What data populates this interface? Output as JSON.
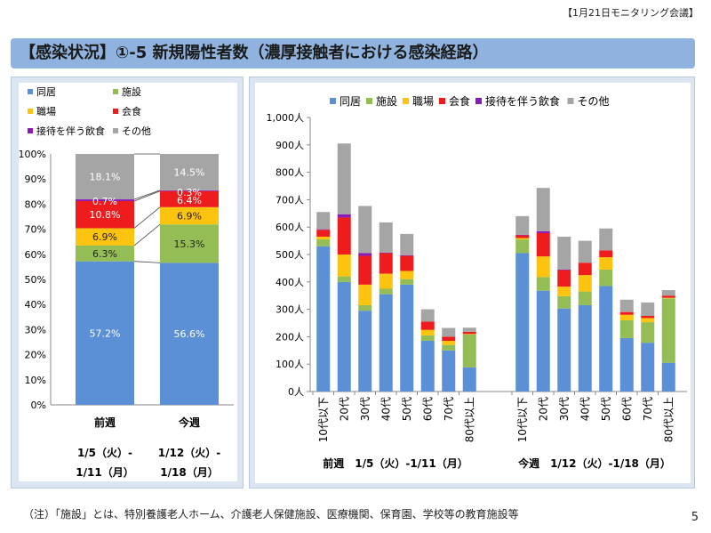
{
  "header": {
    "meeting": "【1月21日モニタリング会議】",
    "title": "【感染状況】①-5 新規陽性者数（濃厚接触者における感染経路）"
  },
  "footer": {
    "note": "（注）「施設」とは、特別養護老人ホーム、介護老人保健施設、医療機関、保育園、学校等の教育施設等",
    "page": "5"
  },
  "colors": {
    "同居": "#5b8fd6",
    "施設": "#94be55",
    "職場": "#fcc30f",
    "会食": "#ee1c1c",
    "接待を伴う飲食": "#8b1bb7",
    "その他": "#a5a5a5"
  },
  "chart_data": [
    {
      "type": "bar",
      "stacked": "percent",
      "categories": [
        "前週",
        "今週"
      ],
      "category_dates": [
        "1/5（火）-\n1/11（月）",
        "1/12（火）-\n1/18（月）"
      ],
      "ylim": [
        0,
        100
      ],
      "yticks": [
        "0%",
        "10%",
        "20%",
        "30%",
        "40%",
        "50%",
        "60%",
        "70%",
        "80%",
        "90%",
        "100%"
      ],
      "legend": [
        "同居",
        "施設",
        "職場",
        "会食",
        "接待を伴う飲食",
        "その他"
      ],
      "series": [
        {
          "name": "同居",
          "values": [
            57.2,
            56.6
          ],
          "labels": [
            "57.2%",
            "56.6%"
          ]
        },
        {
          "name": "施設",
          "values": [
            6.3,
            15.3
          ],
          "labels": [
            "6.3%",
            "15.3%"
          ]
        },
        {
          "name": "職場",
          "values": [
            6.9,
            6.9
          ],
          "labels": [
            "6.9%",
            "6.9%"
          ]
        },
        {
          "name": "会食",
          "values": [
            10.8,
            6.4
          ],
          "labels": [
            "10.8%",
            "6.4%"
          ]
        },
        {
          "name": "接待を伴う飲食",
          "values": [
            0.7,
            0.3
          ],
          "labels": [
            "0.7%",
            "0.3%"
          ]
        },
        {
          "name": "その他",
          "values": [
            18.1,
            14.5
          ],
          "labels": [
            "18.1%",
            "14.5%"
          ]
        }
      ]
    },
    {
      "type": "bar",
      "stacked": "absolute",
      "groups": [
        {
          "label": "前週　1/5（火）-1/11（月）",
          "categories": [
            "10代以下",
            "20代",
            "30代",
            "40代",
            "50代",
            "60代",
            "70代",
            "80代以上"
          ]
        },
        {
          "label": "今週　1/12（火）-1/18（月）",
          "categories": [
            "10代以下",
            "20代",
            "30代",
            "40代",
            "50代",
            "60代",
            "70代",
            "80代以上"
          ]
        }
      ],
      "ylim": [
        0,
        1000
      ],
      "yticks": [
        "0人",
        "100人",
        "200人",
        "300人",
        "400人",
        "500人",
        "600人",
        "700人",
        "800人",
        "900人",
        "1,000人"
      ],
      "legend": [
        "同居",
        "施設",
        "職場",
        "会食",
        "接待を伴う飲食",
        "その他"
      ],
      "series": [
        {
          "name": "同居",
          "values": [
            530,
            400,
            295,
            355,
            390,
            185,
            150,
            88,
            505,
            368,
            303,
            315,
            385,
            195,
            178,
            105
          ]
        },
        {
          "name": "施設",
          "values": [
            25,
            20,
            20,
            20,
            20,
            20,
            20,
            120,
            50,
            50,
            45,
            50,
            60,
            65,
            75,
            235
          ]
        },
        {
          "name": "職場",
          "values": [
            10,
            80,
            75,
            55,
            30,
            20,
            15,
            2,
            5,
            75,
            35,
            60,
            45,
            20,
            15,
            2
          ]
        },
        {
          "name": "会食",
          "values": [
            25,
            135,
            105,
            75,
            55,
            30,
            15,
            8,
            10,
            85,
            60,
            45,
            25,
            10,
            8,
            8
          ]
        },
        {
          "name": "接待を伴う飲食",
          "values": [
            2,
            12,
            10,
            2,
            2,
            0,
            0,
            0,
            2,
            7,
            2,
            0,
            0,
            0,
            0,
            0
          ]
        },
        {
          "name": "その他",
          "values": [
            63,
            258,
            172,
            110,
            78,
            45,
            32,
            15,
            68,
            158,
            120,
            80,
            80,
            45,
            49,
            20
          ]
        }
      ]
    }
  ]
}
